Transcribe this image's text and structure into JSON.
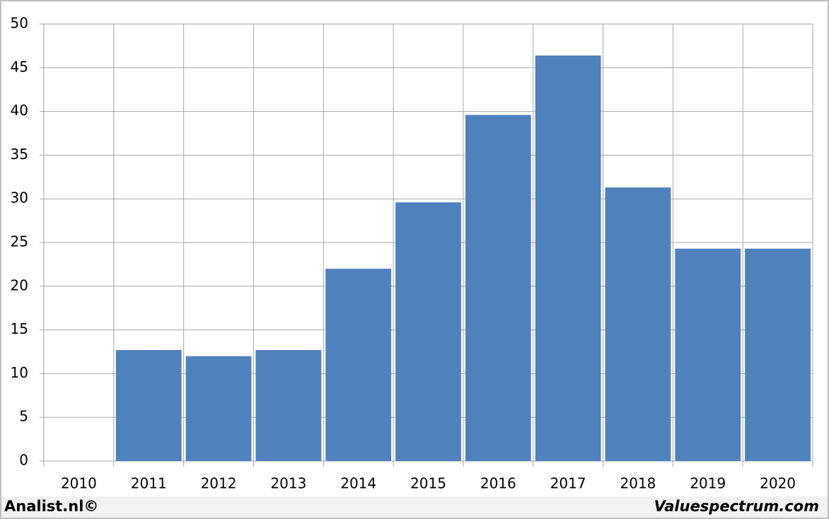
{
  "chart_data": {
    "type": "bar",
    "categories": [
      "2010",
      "2011",
      "2012",
      "2013",
      "2014",
      "2015",
      "2016",
      "2017",
      "2018",
      "2019",
      "2020"
    ],
    "values": [
      0,
      12.7,
      12.0,
      12.7,
      22.0,
      29.6,
      39.6,
      46.4,
      31.3,
      24.3,
      24.3
    ],
    "color": "#4f81bd",
    "ylim": [
      0,
      50
    ],
    "yticks": [
      0,
      5,
      10,
      15,
      20,
      25,
      30,
      35,
      40,
      45,
      50
    ],
    "grid": true
  },
  "footer": {
    "left": "Analist.nl©",
    "right": "Valuespectrum.com"
  }
}
